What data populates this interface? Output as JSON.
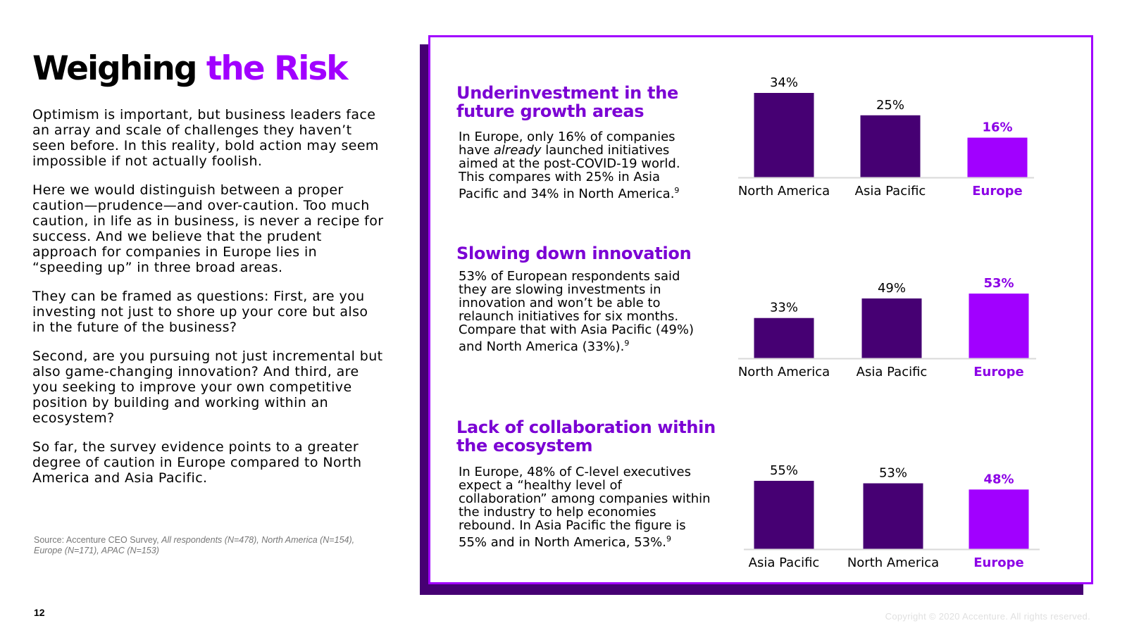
{
  "page": {
    "title_part1": "Weighing",
    "title_part2": "the Risk",
    "paragraphs": [
      "Optimism is important, but business leaders face an array and scale of challenges they haven’t seen before. In this reality, bold action may seem impossible if not actually foolish.",
      "Here we would distinguish between a proper caution—prudence—and over-caution. Too much caution, in life as in business, is never a recipe for success. And we believe that the prudent approach for companies in Europe lies in “speeding up” in three broad areas.",
      "They can be framed as questions: First, are you investing not just to shore up your core but also in the future of the business?",
      "Second, are you pursuing not just incremental but also game-changing innovation? And third, are you seeking to improve your own competitive position by building and working within an ecosystem?",
      "So far, the survey evidence points to a greater degree of caution in Europe compared to North America and Asia Pacific."
    ],
    "source_label": "Source:",
    "source_org": "Accenture CEO Survey,",
    "source_detail": "All respondents (N=478), North America (N=154), Europe (N=171), APAC (N=153)",
    "page_number": "12",
    "copyright": "Copyright © 2020 Accenture. All rights reserved."
  },
  "sections": [
    {
      "title": "Underinvestment in the future growth areas",
      "body_pre": "In Europe, only 16% of companies have ",
      "body_italic": "already",
      "body_post": " launched initiatives aimed at the post-COVID-19 world. This compares with 25% in Asia Pacific and 34% in North America.",
      "footnote": "9"
    },
    {
      "title": "Slowing down innovation",
      "body_pre": "53% of European respondents said they are slowing investments in innovation and won’t be able to relaunch initiatives for six months. Compare that with Asia Pacific (49%) and North America (33%).",
      "body_italic": "",
      "body_post": "",
      "footnote": "9"
    },
    {
      "title": "Lack of collaboration within the ecosystem",
      "body_pre": "In Europe, 48% of C-level executives expect a “healthy level of collaboration” among companies within the industry to help economies rebound. In Asia Pacific the figure is 55% and in North America, 53%.",
      "body_italic": "",
      "body_post": "",
      "footnote": "9"
    }
  ],
  "colors": {
    "regular_bar": "#460073",
    "highlight_bar": "#a100ff",
    "highlight_text": "#8c00e6",
    "baseline": "#d9d9d9"
  },
  "chart_data": [
    {
      "type": "bar",
      "title": "Underinvestment in the future growth areas",
      "categories": [
        "North America",
        "Asia Pacific",
        "Europe"
      ],
      "values": [
        34,
        25,
        16
      ],
      "labels": [
        "34%",
        "25%",
        "16%"
      ],
      "highlight_index": 2,
      "ylim": [
        0,
        34
      ]
    },
    {
      "type": "bar",
      "title": "Slowing down innovation",
      "categories": [
        "North America",
        "Asia Pacific",
        "Europe"
      ],
      "values": [
        33,
        49,
        53
      ],
      "labels": [
        "33%",
        "49%",
        "53%"
      ],
      "highlight_index": 2,
      "ylim": [
        0,
        53
      ]
    },
    {
      "type": "bar",
      "title": "Lack of collaboration within the ecosystem",
      "categories": [
        "Asia Pacific",
        "North America",
        "Europe"
      ],
      "values": [
        55,
        53,
        48
      ],
      "labels": [
        "55%",
        "53%",
        "48%"
      ],
      "highlight_index": 2,
      "ylim": [
        0,
        55
      ]
    }
  ]
}
